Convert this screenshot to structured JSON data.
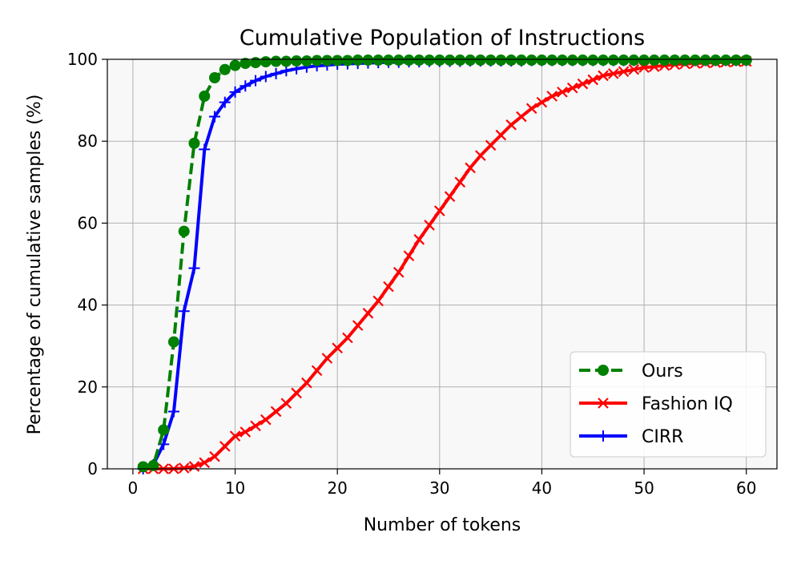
{
  "chart_data": {
    "type": "line",
    "title": "Cumulative Population of Instructions",
    "xlabel": "Number of tokens",
    "ylabel": "Percentage of cumulative samples (%)",
    "xlim": [
      -2.5,
      63
    ],
    "ylim": [
      0,
      100
    ],
    "xticks": [
      0,
      10,
      20,
      30,
      40,
      50,
      60
    ],
    "yticks": [
      0,
      20,
      40,
      60,
      80,
      100
    ],
    "grid": true,
    "legend_position": "lower-right",
    "series": [
      {
        "name": "Ours",
        "color": "#008000",
        "marker": "circle",
        "linestyle": "dashed",
        "x": [
          1,
          2,
          3,
          4,
          5,
          6,
          7,
          8,
          9,
          10,
          11,
          12,
          13,
          14,
          15,
          16,
          17,
          18,
          19,
          20,
          21,
          22,
          23,
          24,
          25,
          26,
          27,
          28,
          29,
          30,
          31,
          32,
          33,
          34,
          35,
          36,
          37,
          38,
          39,
          40,
          41,
          42,
          43,
          44,
          45,
          46,
          47,
          48,
          49,
          50,
          51,
          52,
          53,
          54,
          55,
          56,
          57,
          58,
          59,
          60
        ],
        "y": [
          0.5,
          0.8,
          9.5,
          31,
          58,
          79.5,
          91,
          95.5,
          97.5,
          98.5,
          99,
          99.2,
          99.4,
          99.5,
          99.5,
          99.6,
          99.6,
          99.7,
          99.7,
          99.7,
          99.7,
          99.8,
          99.8,
          99.8,
          99.8,
          99.8,
          99.8,
          99.8,
          99.8,
          99.8,
          99.8,
          99.8,
          99.8,
          99.8,
          99.8,
          99.8,
          99.8,
          99.8,
          99.8,
          99.8,
          99.8,
          99.8,
          99.8,
          99.8,
          99.8,
          99.8,
          99.8,
          99.8,
          99.8,
          99.8,
          99.8,
          99.8,
          99.8,
          99.8,
          99.8,
          99.8,
          99.8,
          99.8,
          99.8,
          99.8
        ]
      },
      {
        "name": "Fashion IQ",
        "color": "#ff0000",
        "marker": "x",
        "linestyle": "solid",
        "x": [
          1,
          2,
          3,
          4,
          5,
          6,
          7,
          8,
          9,
          10,
          11,
          12,
          13,
          14,
          15,
          16,
          17,
          18,
          19,
          20,
          21,
          22,
          23,
          24,
          25,
          26,
          27,
          28,
          29,
          30,
          31,
          32,
          33,
          34,
          35,
          36,
          37,
          38,
          39,
          40,
          41,
          42,
          43,
          44,
          45,
          46,
          47,
          48,
          49,
          50,
          51,
          52,
          53,
          54,
          55,
          56,
          57,
          58,
          59,
          60
        ],
        "y": [
          0,
          0,
          0,
          0,
          0.2,
          0.6,
          1.5,
          3,
          5.5,
          8,
          9,
          10.5,
          12,
          14,
          16,
          18.5,
          21,
          24,
          27,
          29.5,
          32,
          35,
          38,
          41,
          44.5,
          48,
          52,
          56,
          59.5,
          63,
          66.5,
          70,
          73.5,
          76.5,
          79,
          81.5,
          84,
          86,
          88,
          89.5,
          91,
          92,
          93,
          94,
          95,
          96,
          96.5,
          97,
          97.5,
          98,
          98.2,
          98.5,
          98.7,
          98.9,
          99,
          99.1,
          99.2,
          99.3,
          99.4,
          99.5
        ]
      },
      {
        "name": "CIRR",
        "color": "#0000ff",
        "marker": "plus",
        "linestyle": "solid",
        "x": [
          1,
          2,
          3,
          4,
          5,
          6,
          7,
          8,
          9,
          10,
          11,
          12,
          13,
          14,
          15,
          16,
          17,
          18,
          19,
          20,
          21,
          22,
          23,
          24,
          25,
          26,
          27,
          28,
          29,
          30,
          31,
          32,
          33,
          34,
          35,
          36,
          37,
          38,
          39,
          40,
          41,
          42,
          43,
          44,
          45,
          46,
          47,
          48,
          49,
          50,
          51,
          52,
          53,
          54,
          55,
          56,
          57,
          58,
          59,
          60
        ],
        "y": [
          0,
          1,
          6,
          14,
          38.5,
          49,
          78,
          86,
          89.5,
          92,
          93.5,
          94.8,
          95.8,
          96.5,
          97.2,
          97.7,
          98.1,
          98.4,
          98.6,
          98.8,
          98.9,
          99,
          99.1,
          99.2,
          99.3,
          99.3,
          99.4,
          99.4,
          99.5,
          99.5,
          99.5,
          99.5,
          99.6,
          99.6,
          99.6,
          99.6,
          99.6,
          99.6,
          99.7,
          99.7,
          99.7,
          99.7,
          99.7,
          99.7,
          99.7,
          99.7,
          99.7,
          99.7,
          99.7,
          99.7,
          99.7,
          99.7,
          99.7,
          99.7,
          99.7,
          99.7,
          99.7,
          99.7,
          99.7,
          99.7
        ]
      }
    ]
  }
}
